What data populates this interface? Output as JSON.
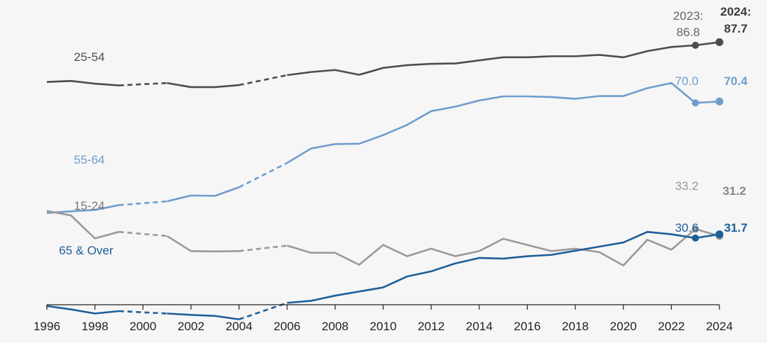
{
  "chart_data": {
    "type": "line",
    "title": "",
    "xlabel": "",
    "ylabel": "",
    "xlim": [
      1996,
      2024
    ],
    "ylim": [
      0,
      100
    ],
    "grid": false,
    "legend": "inline",
    "x_ticks": [
      "1996",
      "1998",
      "2000",
      "2002",
      "2004",
      "2006",
      "2008",
      "2010",
      "2012",
      "2014",
      "2016",
      "2018",
      "2020",
      "2022",
      "2024"
    ],
    "x": [
      1996,
      1997,
      1998,
      1999,
      2000,
      2001,
      2002,
      2003,
      2004,
      2005,
      2006,
      2007,
      2008,
      2009,
      2010,
      2011,
      2012,
      2013,
      2014,
      2015,
      2016,
      2017,
      2018,
      2019,
      2020,
      2021,
      2022,
      2023,
      2024
    ],
    "dashed_gaps": [
      [
        1999,
        2001
      ],
      [
        2004,
        2006
      ]
    ],
    "series": [
      {
        "name": "25-54",
        "color": "#4d4d4d",
        "values": [
          76.1,
          76.4,
          75.6,
          75.1,
          null,
          75.8,
          74.6,
          74.6,
          75.2,
          null,
          78.1,
          79.0,
          79.6,
          78.2,
          80.2,
          81.0,
          81.4,
          81.5,
          82.4,
          83.3,
          83.3,
          83.6,
          83.6,
          84.0,
          83.3,
          85.1,
          86.3,
          86.8,
          87.7
        ],
        "callouts": [
          {
            "year_text": "2023:",
            "value_text": "86.8",
            "bold": false
          },
          {
            "year_text": "2024:",
            "value_text": "87.7",
            "bold": true
          }
        ]
      },
      {
        "name": "55-64",
        "color": "#6f9dcc",
        "values": [
          37.9,
          38.4,
          38.8,
          40.2,
          null,
          41.3,
          43.0,
          42.9,
          45.4,
          null,
          52.5,
          56.7,
          58.0,
          58.1,
          60.6,
          63.6,
          67.6,
          68.9,
          70.7,
          71.9,
          71.9,
          71.7,
          71.2,
          72.0,
          72.0,
          74.3,
          75.8,
          70.0,
          70.4
        ],
        "callouts": [
          {
            "year_text": "",
            "value_text": "70.0",
            "bold": false
          },
          {
            "year_text": "",
            "value_text": "70.4",
            "bold": true
          }
        ]
      },
      {
        "name": "15-24",
        "color": "#9a9a9a",
        "values": [
          38.5,
          37.2,
          30.5,
          32.4,
          null,
          31.2,
          26.8,
          26.7,
          26.8,
          null,
          28.4,
          26.3,
          26.3,
          22.8,
          28.6,
          25.3,
          27.5,
          25.3,
          26.8,
          30.4,
          28.6,
          26.8,
          27.5,
          26.5,
          22.6,
          30.1,
          27.2,
          33.2,
          31.2
        ],
        "callouts": [
          {
            "year_text": "",
            "value_text": "33.2",
            "bold": false
          },
          {
            "year_text": "",
            "value_text": "31.2",
            "bold": true
          }
        ]
      },
      {
        "name": "65 & Over",
        "color": "#1f5f99",
        "values": [
          10.8,
          9.8,
          8.6,
          9.3,
          null,
          8.6,
          8.2,
          7.9,
          6.9,
          null,
          11.7,
          12.3,
          13.8,
          15.0,
          16.2,
          19.4,
          20.9,
          23.2,
          24.8,
          24.6,
          25.3,
          25.7,
          26.9,
          28.1,
          29.3,
          32.4,
          31.7,
          30.6,
          31.7
        ],
        "callouts": [
          {
            "year_text": "",
            "value_text": "30.6",
            "bold": false
          },
          {
            "year_text": "",
            "value_text": "31.7",
            "bold": true
          }
        ]
      }
    ]
  }
}
